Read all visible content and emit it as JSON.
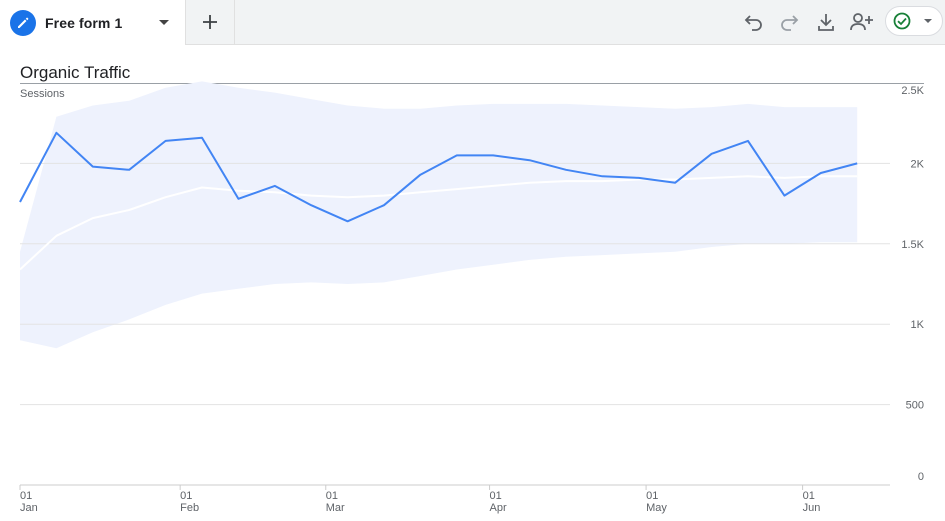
{
  "tab": {
    "label": "Free form 1"
  },
  "toolbar": {
    "icons": [
      "undo-icon",
      "redo-icon",
      "download-icon",
      "share-user-icon",
      "check-circle-icon"
    ]
  },
  "colors": {
    "accent": "#1a73e8",
    "line": "#4285f4",
    "band": "#eef2fd",
    "status": "#188038"
  },
  "chart_data": {
    "type": "line",
    "title": "Organic Traffic",
    "ylabel": "Sessions",
    "ylim": [
      0,
      2500
    ],
    "yticks": [
      0,
      500,
      1000,
      1500,
      2000,
      2500
    ],
    "ytick_labels": [
      "0",
      "500",
      "1K",
      "1.5K",
      "2K",
      "2.5K"
    ],
    "x_tick_labels": [
      {
        "day": "01",
        "month": "Jan",
        "index": 0
      },
      {
        "day": "01",
        "month": "Feb",
        "index": 4.4
      },
      {
        "day": "01",
        "month": "Mar",
        "index": 8.4
      },
      {
        "day": "01",
        "month": "Apr",
        "index": 12.9
      },
      {
        "day": "01",
        "month": "May",
        "index": 17.2
      },
      {
        "day": "01",
        "month": "Jun",
        "index": 21.5
      }
    ],
    "x_count": 24,
    "series": [
      {
        "values": [
          1760,
          2190,
          1980,
          1960,
          2140,
          2160,
          1780,
          1860,
          1740,
          1640,
          1740,
          1930,
          2050,
          2050,
          2020,
          1960,
          1920,
          1910,
          1880,
          2060,
          2140,
          1800,
          1940,
          2000
        ]
      },
      {
        "values": [
          1340,
          1550,
          1660,
          1710,
          1790,
          1850,
          1830,
          1820,
          1800,
          1790,
          1800,
          1820,
          1840,
          1860,
          1880,
          1890,
          1890,
          1900,
          1900,
          1910,
          1920,
          1910,
          1920,
          1920
        ]
      }
    ],
    "band": {
      "upper": [
        1450,
        2290,
        2360,
        2390,
        2470,
        2510,
        2470,
        2440,
        2400,
        2360,
        2340,
        2340,
        2360,
        2370,
        2370,
        2370,
        2360,
        2350,
        2340,
        2350,
        2370,
        2350,
        2350,
        2350
      ],
      "lower": [
        900,
        850,
        950,
        1030,
        1120,
        1190,
        1220,
        1250,
        1260,
        1250,
        1260,
        1300,
        1340,
        1370,
        1400,
        1420,
        1430,
        1440,
        1450,
        1480,
        1500,
        1500,
        1510,
        1510
      ]
    }
  }
}
